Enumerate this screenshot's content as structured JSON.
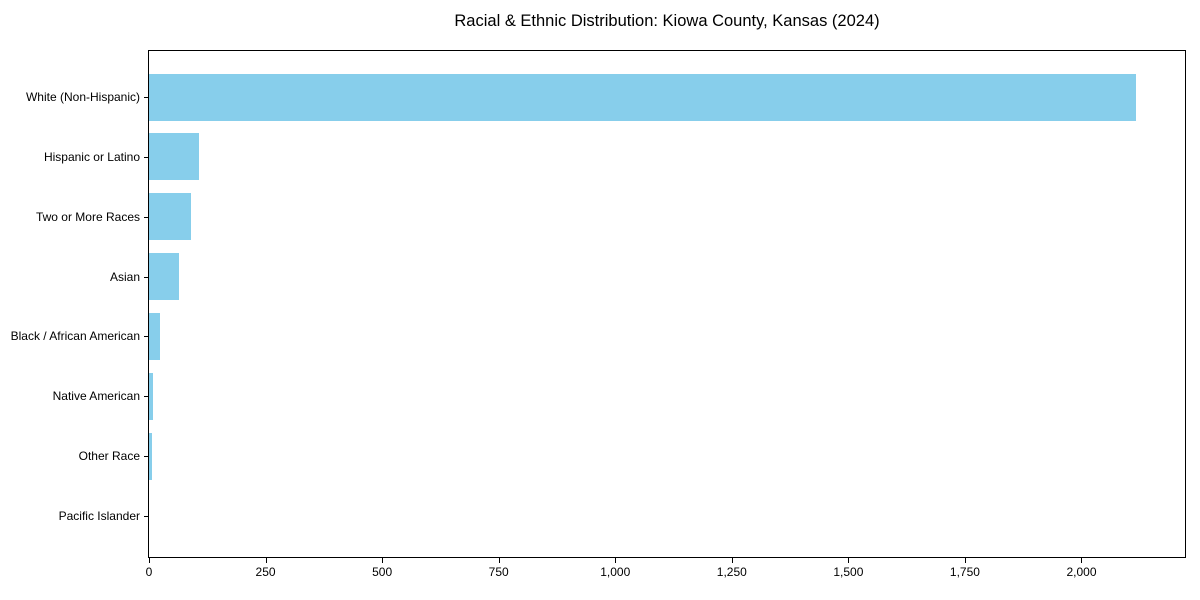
{
  "chart_data": {
    "type": "bar",
    "orientation": "horizontal",
    "title": "Racial & Ethnic Distribution: Kiowa County, Kansas (2024)",
    "categories": [
      "White (Non-Hispanic)",
      "Hispanic or Latino",
      "Two or More Races",
      "Asian",
      "Black / African American",
      "Native American",
      "Other Race",
      "Pacific Islander"
    ],
    "values": [
      2116,
      108,
      90,
      64,
      24,
      9,
      7,
      0
    ],
    "xlabel": "",
    "ylabel": "",
    "xlim": [
      0,
      2222
    ],
    "x_ticks": [
      0,
      250,
      500,
      750,
      1000,
      1250,
      1500,
      1750,
      2000
    ],
    "x_tick_labels": [
      "0",
      "250",
      "500",
      "750",
      "1,000",
      "1,250",
      "1,500",
      "1,750",
      "2,000"
    ],
    "grid": false,
    "legend_position": "none",
    "bar_color": "#87CEEB",
    "axis_color": "#000000",
    "text_color": "#000000",
    "background_color": "#ffffff"
  }
}
